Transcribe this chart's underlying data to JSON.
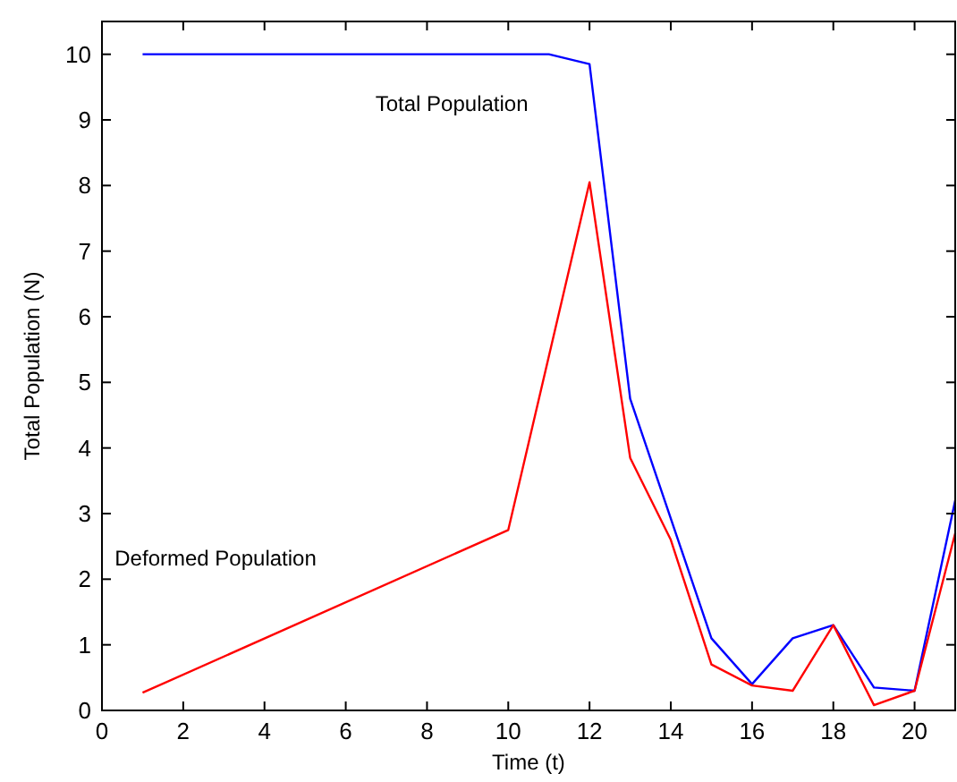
{
  "chart_data": {
    "type": "line",
    "xlabel": "Time (t)",
    "ylabel": "Total Population (N)",
    "xlim": [
      0,
      21
    ],
    "ylim": [
      0,
      10.5
    ],
    "xticks": [
      0,
      2,
      4,
      6,
      8,
      10,
      12,
      14,
      16,
      18,
      20
    ],
    "yticks": [
      0,
      1,
      2,
      3,
      4,
      5,
      6,
      7,
      8,
      9,
      10
    ],
    "grid": false,
    "legend": false,
    "marker": "none",
    "line_style": "solid",
    "series": [
      {
        "name": "Total Population",
        "color": "#0000ff",
        "x": [
          1,
          11,
          12,
          13,
          15,
          16,
          17,
          18,
          19,
          20,
          21
        ],
        "values": [
          10,
          10,
          9.85,
          4.75,
          1.1,
          0.4,
          1.1,
          1.3,
          0.35,
          0.3,
          3.2
        ]
      },
      {
        "name": "Deformed Population",
        "color": "#ff0000",
        "x": [
          1,
          10,
          12,
          13,
          14,
          15,
          16,
          17,
          18,
          19,
          20,
          21
        ],
        "values": [
          0.27,
          2.75,
          8.05,
          3.85,
          2.6,
          0.7,
          0.38,
          0.3,
          1.3,
          0.08,
          0.3,
          2.7
        ]
      }
    ]
  }
}
